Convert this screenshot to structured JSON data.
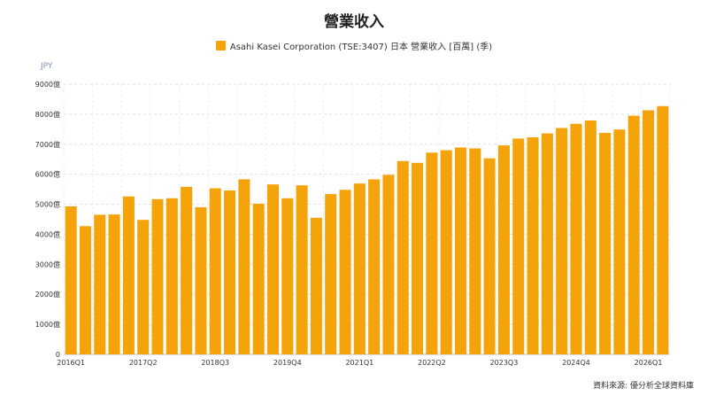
{
  "chart_data": {
    "type": "bar",
    "title": "營業收入",
    "unit_label": "JPY",
    "legend_placement": "top-center",
    "series": [
      {
        "name": "Asahi Kasei Corporation (TSE:3407) 日本 營業收入 [百萬] (季)",
        "color": "#f5a30a",
        "values": [
          4930,
          4270,
          4650,
          4660,
          5260,
          4480,
          5170,
          5200,
          5580,
          4900,
          5530,
          5460,
          5830,
          5020,
          5660,
          5200,
          5630,
          4550,
          5340,
          5480,
          5690,
          5830,
          5980,
          6440,
          6380,
          6720,
          6800,
          6890,
          6860,
          6530,
          6960,
          7190,
          7230,
          7360,
          7540,
          7680,
          7790,
          7380,
          7490,
          7950,
          8130,
          8270
        ]
      }
    ],
    "x_tick_labels": [
      {
        "index": 0,
        "label": "2016Q1"
      },
      {
        "index": 5,
        "label": "2017Q2"
      },
      {
        "index": 10,
        "label": "2018Q3"
      },
      {
        "index": 15,
        "label": "2019Q4"
      },
      {
        "index": 20,
        "label": "2021Q1"
      },
      {
        "index": 25,
        "label": "2022Q2"
      },
      {
        "index": 30,
        "label": "2023Q3"
      },
      {
        "index": 35,
        "label": "2024Q4"
      },
      {
        "index": 40,
        "label": "2026Q1"
      }
    ],
    "y_ticks": [
      {
        "value": 0,
        "label": "0"
      },
      {
        "value": 1000,
        "label": "1000億"
      },
      {
        "value": 2000,
        "label": "2000億"
      },
      {
        "value": 3000,
        "label": "3000億"
      },
      {
        "value": 4000,
        "label": "4000億"
      },
      {
        "value": 5000,
        "label": "5000億"
      },
      {
        "value": 6000,
        "label": "6000億"
      },
      {
        "value": 7000,
        "label": "7000億"
      },
      {
        "value": 8000,
        "label": "8000億"
      },
      {
        "value": 9000,
        "label": "9000億"
      }
    ],
    "ylim": [
      0,
      9000
    ],
    "grid": true
  },
  "source_note": "資料來源: 優分析全球資料庫"
}
